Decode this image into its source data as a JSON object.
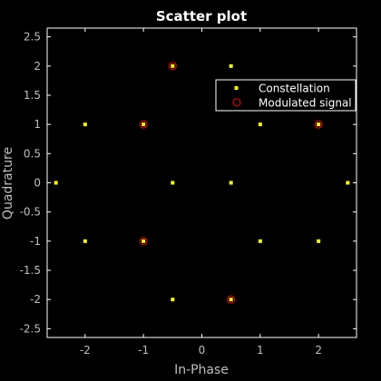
{
  "chart_data": {
    "type": "scatter",
    "title": "Scatter plot",
    "xlabel": "In-Phase",
    "ylabel": "Quadrature",
    "xlim": [
      -2.65,
      2.65
    ],
    "ylim": [
      -2.65,
      2.65
    ],
    "xticks": [
      -2,
      -1,
      0,
      1,
      2
    ],
    "xtick_labels": [
      "-2",
      "-1",
      "0",
      "1",
      "2"
    ],
    "yticks": [
      -2.5,
      -2,
      -1.5,
      -1,
      -0.5,
      0,
      0.5,
      1,
      1.5,
      2,
      2.5
    ],
    "ytick_labels": [
      "-2.5",
      "-2",
      "-1.5",
      "-1",
      "-0.5",
      "0",
      "0.5",
      "1",
      "1.5",
      "2",
      "2.5"
    ],
    "grid": false,
    "legend_position": "top-right",
    "series": [
      {
        "name": "Constellation",
        "marker": "square",
        "color": "#ffff00",
        "x": [
          -0.5,
          0.5,
          -2,
          -1,
          1,
          2,
          -2.5,
          -0.5,
          0.5,
          2.5,
          -2,
          -1,
          1,
          2,
          -0.5,
          0.5
        ],
        "y": [
          2,
          2,
          1,
          1,
          1,
          1,
          0,
          0,
          0,
          0,
          -1,
          -1,
          -1,
          -1,
          -2,
          -2
        ]
      },
      {
        "name": "Modulated signal",
        "marker": "circle",
        "color": "#ff0000",
        "x": [
          -0.5,
          -1,
          2,
          -1,
          0.5
        ],
        "y": [
          2,
          1,
          1,
          -1,
          -2
        ]
      }
    ]
  },
  "colors": {
    "background": "#000000",
    "axes_background": "#000000",
    "axis": "#ffffff",
    "tick_text": "#bfbfbf",
    "label_text": "#bfbfbf",
    "title_text": "#ffffff",
    "legend_text": "#ffffff",
    "legend_border": "#ffffff",
    "constellation": "#ffff00",
    "signal": "#ff0000"
  }
}
